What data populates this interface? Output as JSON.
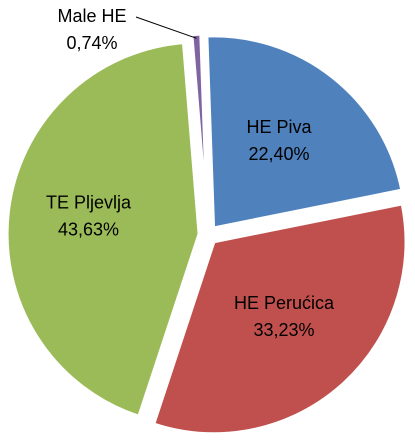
{
  "chart_data": {
    "type": "pie",
    "title": "",
    "categories": [
      "HE Piva",
      "HE Perućica",
      "TE Pljevlja",
      "Male HE"
    ],
    "values": [
      22.4,
      33.23,
      43.63,
      0.74
    ],
    "value_labels": [
      "22,40%",
      "33,23%",
      "43,63%",
      "0,74%"
    ],
    "colors": [
      "#4f81bd",
      "#c0504d",
      "#9bbb59",
      "#8064a2"
    ],
    "exploded": true,
    "legend": "none",
    "data_labels": "inside, category and percent"
  }
}
